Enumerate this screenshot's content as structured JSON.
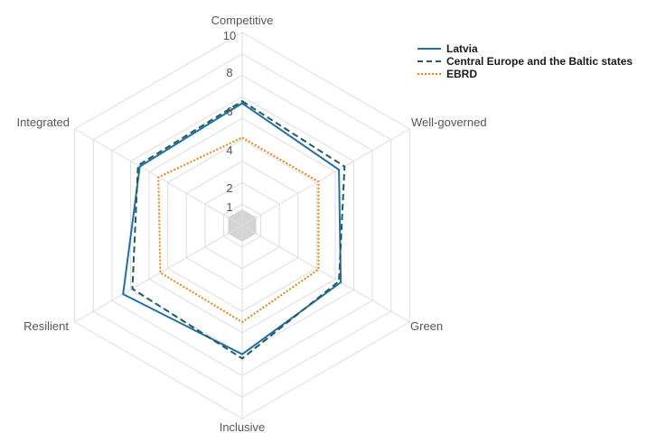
{
  "chart_data": {
    "type": "radar",
    "title": "",
    "axes": [
      "Competitive",
      "Well-governed",
      "Green",
      "Inclusive",
      "Resilient",
      "Integrated"
    ],
    "rlim": [
      1,
      10
    ],
    "ticks": [
      1,
      2,
      4,
      6,
      8,
      10
    ],
    "tick_labels": [
      "1",
      "2",
      "4",
      "6",
      "8",
      "10"
    ],
    "series": [
      {
        "name": "Latvia",
        "values": [
          6.7,
          6.2,
          6.3,
          7.0,
          7.4,
          6.5
        ],
        "color": "#1f6fa8",
        "style": "solid"
      },
      {
        "name": "Central Europe and the Baltic states",
        "values": [
          6.8,
          6.5,
          6.2,
          7.2,
          6.9,
          6.6
        ],
        "color": "#245c5a",
        "style": "dashed"
      },
      {
        "name": "EBRD",
        "values": [
          5.1,
          5.1,
          5.1,
          5.5,
          5.4,
          5.5
        ],
        "color": "#e8820e",
        "style": "dotted"
      }
    ],
    "legend_position": "top-right",
    "grid": true,
    "center_fill_color": "#d4d4d4",
    "grid_color": "#dddddd"
  }
}
